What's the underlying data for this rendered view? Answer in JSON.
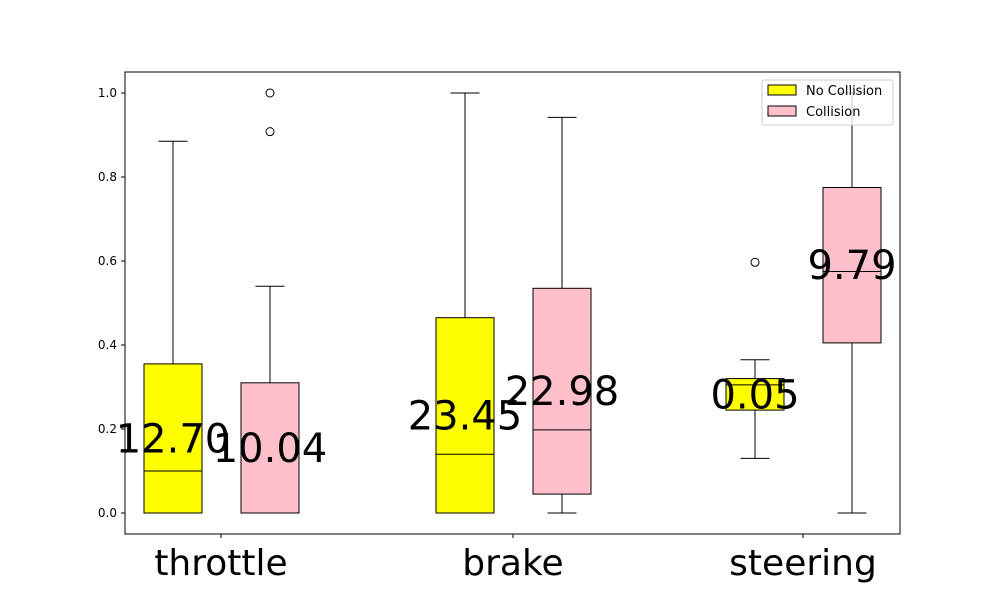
{
  "chart_data": {
    "type": "box",
    "categories": [
      "throttle",
      "brake",
      "steering"
    ],
    "ylim": [
      -0.05,
      1.05
    ],
    "yticks": [
      "0.0",
      "0.2",
      "0.4",
      "0.6",
      "0.8",
      "1.0"
    ],
    "grid": false,
    "legend_position": "top-right",
    "series": [
      {
        "name": "No Collision",
        "color": "#ffff00",
        "boxes": [
          {
            "category": "throttle",
            "whisker_low": 0.0,
            "q1": 0.0,
            "median": 0.1,
            "q3": 0.355,
            "whisker_high": 0.885,
            "outliers": [],
            "label": "12.70"
          },
          {
            "category": "brake",
            "whisker_low": 0.0,
            "q1": 0.0,
            "median": 0.14,
            "q3": 0.465,
            "whisker_high": 1.0,
            "outliers": [],
            "label": "23.45"
          },
          {
            "category": "steering",
            "whisker_low": 0.13,
            "q1": 0.245,
            "median": 0.305,
            "q3": 0.32,
            "whisker_high": 0.365,
            "outliers": [
              0.597
            ],
            "label": "0.05"
          }
        ]
      },
      {
        "name": "Collision",
        "color": "#ffc0cb",
        "boxes": [
          {
            "category": "throttle",
            "whisker_low": 0.0,
            "q1": 0.0,
            "median": 0.0,
            "q3": 0.31,
            "whisker_high": 0.54,
            "outliers": [
              0.908,
              1.0
            ],
            "label": "10.04"
          },
          {
            "category": "brake",
            "whisker_low": 0.0,
            "q1": 0.045,
            "median": 0.198,
            "q3": 0.535,
            "whisker_high": 0.942,
            "outliers": [],
            "label": "22.98"
          },
          {
            "category": "steering",
            "whisker_low": 0.0,
            "q1": 0.405,
            "median": 0.575,
            "q3": 0.775,
            "whisker_high": 1.0,
            "outliers": [],
            "label": "9.79"
          }
        ]
      }
    ]
  }
}
